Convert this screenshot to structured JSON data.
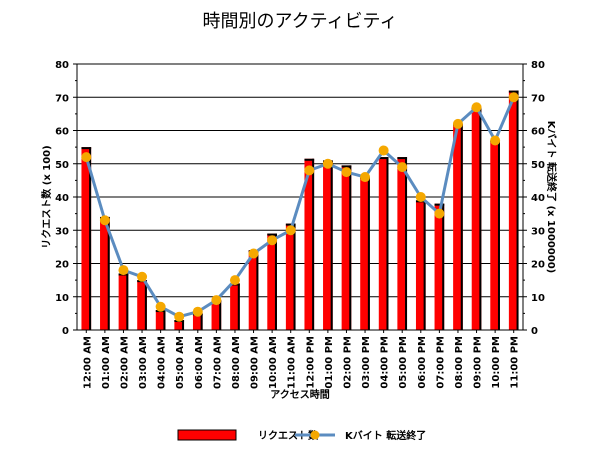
{
  "chart_data": {
    "type": "bar",
    "title": "時間別のアクティビティ",
    "xlabel": "アクセス時間",
    "ylabel": "リクエスト数 (x 100)",
    "y2label": "Kバイト 転送終了 (x 1000000)",
    "ylim": [
      0,
      80
    ],
    "y2lim": [
      0,
      80
    ],
    "yticks": [
      "0",
      "10",
      "20",
      "30",
      "40",
      "50",
      "60",
      "70",
      "80"
    ],
    "grid": true,
    "legend_position": "bottom",
    "categories": [
      "12:00 AM",
      "01:00 AM",
      "02:00 AM",
      "03:00 AM",
      "04:00 AM",
      "05:00 AM",
      "06:00 AM",
      "07:00 AM",
      "08:00 AM",
      "09:00 AM",
      "10:00 AM",
      "11:00 AM",
      "12:00 PM",
      "01:00 PM",
      "02:00 PM",
      "03:00 PM",
      "04:00 PM",
      "05:00 PM",
      "06:00 PM",
      "07:00 PM",
      "08:00 PM",
      "09:00 PM",
      "10:00 PM",
      "11:00 PM"
    ],
    "series": [
      {
        "name": "リクエスト数",
        "kind": "bar",
        "axis": "left",
        "color": "#ff0000",
        "values": [
          55,
          34,
          17,
          15,
          6,
          3,
          5,
          9,
          14,
          24,
          29,
          32,
          51.5,
          51,
          49.5,
          46,
          52,
          52,
          39,
          38,
          62,
          67,
          57,
          72
        ]
      },
      {
        "name": "Kバイト 転送終了",
        "kind": "line",
        "axis": "right",
        "color": "#5b8cc0",
        "marker_color": "#f5a800",
        "values": [
          52,
          33,
          18,
          16,
          7,
          4,
          5.5,
          9,
          15,
          23,
          27,
          30,
          48,
          50,
          47.5,
          46,
          54,
          49,
          40,
          35,
          62,
          67,
          57,
          70
        ]
      }
    ]
  }
}
